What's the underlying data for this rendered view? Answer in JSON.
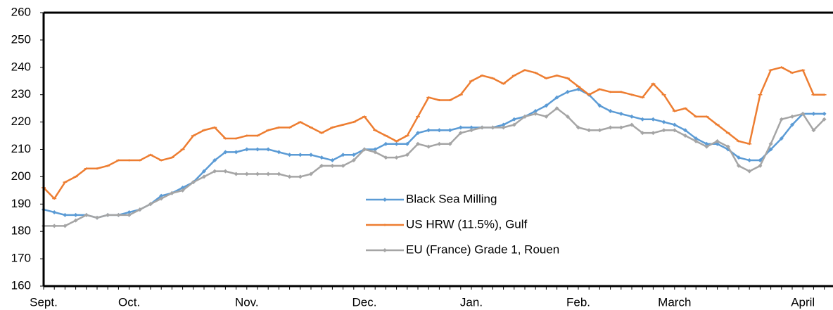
{
  "chart_data": {
    "type": "line",
    "categories": [
      "Sept.",
      null,
      null,
      null,
      null,
      null,
      null,
      null,
      "Oct.",
      null,
      null,
      null,
      null,
      null,
      null,
      null,
      null,
      null,
      null,
      "Nov.",
      null,
      null,
      null,
      null,
      null,
      null,
      null,
      null,
      null,
      null,
      "Dec.",
      null,
      null,
      null,
      null,
      null,
      null,
      null,
      null,
      null,
      "Jan.",
      null,
      null,
      null,
      null,
      null,
      null,
      null,
      null,
      null,
      "Feb.",
      null,
      null,
      null,
      null,
      null,
      null,
      null,
      null,
      "March",
      null,
      null,
      null,
      null,
      null,
      null,
      null,
      null,
      null,
      null,
      null,
      "April",
      null,
      null
    ],
    "series": [
      {
        "name": "Black Sea Milling",
        "color": "#5b9bd5",
        "values": [
          188,
          187,
          186,
          186,
          186,
          185,
          186,
          186,
          187,
          188,
          190,
          193,
          194,
          196,
          198,
          202,
          206,
          209,
          209,
          210,
          210,
          210,
          209,
          208,
          208,
          208,
          207,
          206,
          208,
          208,
          210,
          210,
          212,
          212,
          212,
          216,
          217,
          217,
          217,
          218,
          218,
          218,
          218,
          219,
          221,
          222,
          224,
          226,
          229,
          231,
          232,
          230,
          226,
          224,
          223,
          222,
          221,
          221,
          220,
          219,
          217,
          214,
          212,
          212,
          210,
          207,
          206,
          206,
          210,
          214,
          219,
          223,
          223,
          223
        ]
      },
      {
        "name": "US HRW (11.5%), Gulf",
        "color": "#ed7d31",
        "values": [
          196,
          192,
          198,
          200,
          203,
          203,
          204,
          206,
          206,
          206,
          208,
          206,
          207,
          210,
          215,
          217,
          218,
          214,
          214,
          215,
          215,
          217,
          218,
          218,
          220,
          218,
          216,
          218,
          219,
          220,
          222,
          217,
          215,
          213,
          215,
          222,
          229,
          228,
          228,
          230,
          235,
          237,
          236,
          234,
          237,
          239,
          238,
          236,
          237,
          236,
          233,
          230,
          232,
          231,
          231,
          230,
          229,
          234,
          230,
          224,
          225,
          222,
          222,
          219,
          216,
          213,
          212,
          230,
          239,
          240,
          238,
          239,
          230,
          230
        ]
      },
      {
        "name": "EU (France) Grade 1, Rouen",
        "color": "#a5a5a5",
        "values": [
          182,
          182,
          182,
          184,
          186,
          185,
          186,
          186,
          186,
          188,
          190,
          192,
          194,
          195,
          198,
          200,
          202,
          202,
          201,
          201,
          201,
          201,
          201,
          200,
          200,
          201,
          204,
          204,
          204,
          206,
          210,
          209,
          207,
          207,
          208,
          212,
          211,
          212,
          212,
          216,
          217,
          218,
          218,
          218,
          219,
          222,
          223,
          222,
          225,
          222,
          218,
          217,
          217,
          218,
          218,
          219,
          216,
          216,
          217,
          217,
          215,
          213,
          211,
          213,
          211,
          204,
          202,
          204,
          212,
          221,
          222,
          223,
          217,
          221
        ]
      }
    ],
    "ylim": [
      160,
      260
    ],
    "yticks": [
      160,
      170,
      180,
      190,
      200,
      210,
      220,
      230,
      240,
      250,
      260
    ]
  }
}
